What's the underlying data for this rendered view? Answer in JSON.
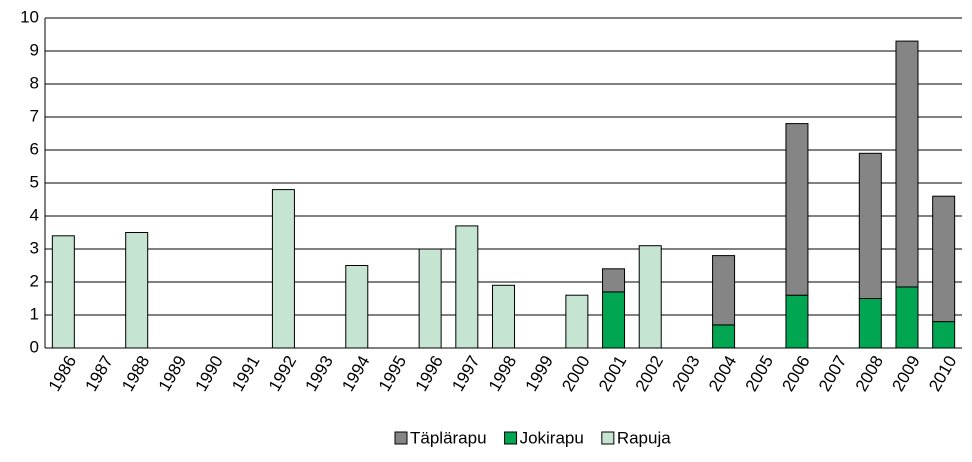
{
  "chart_data": {
    "type": "stacked_bar",
    "categories": [
      "1986",
      "1987",
      "1988",
      "1989",
      "1990",
      "1991",
      "1992",
      "1993",
      "1994",
      "1995",
      "1996",
      "1997",
      "1998",
      "1999",
      "2000",
      "2001",
      "2002",
      "2003",
      "2004",
      "2005",
      "2006",
      "2007",
      "2008",
      "2009",
      "2010"
    ],
    "series": [
      {
        "name": "Täplärapu",
        "color": "#858585",
        "values": [
          null,
          null,
          null,
          null,
          null,
          null,
          null,
          null,
          null,
          null,
          null,
          null,
          null,
          null,
          null,
          0.7,
          null,
          null,
          2.1,
          null,
          5.2,
          null,
          4.4,
          7.45,
          3.8
        ]
      },
      {
        "name": "Jokirapu",
        "color": "#00a651",
        "values": [
          null,
          null,
          null,
          null,
          null,
          null,
          null,
          null,
          null,
          null,
          null,
          null,
          null,
          null,
          null,
          1.7,
          null,
          null,
          0.7,
          null,
          1.6,
          null,
          1.5,
          1.85,
          0.8
        ]
      },
      {
        "name": "Rapuja",
        "color": "#c5e5d2",
        "values": [
          3.4,
          null,
          3.5,
          null,
          null,
          null,
          4.8,
          null,
          2.5,
          null,
          3.0,
          3.7,
          1.9,
          null,
          1.6,
          null,
          3.1,
          null,
          null,
          null,
          null,
          null,
          null,
          null,
          null
        ]
      }
    ],
    "ylim": [
      0,
      10
    ],
    "yticks": [
      0,
      1,
      2,
      3,
      4,
      5,
      6,
      7,
      8,
      9,
      10
    ],
    "grid": true,
    "legend": "bottom"
  }
}
